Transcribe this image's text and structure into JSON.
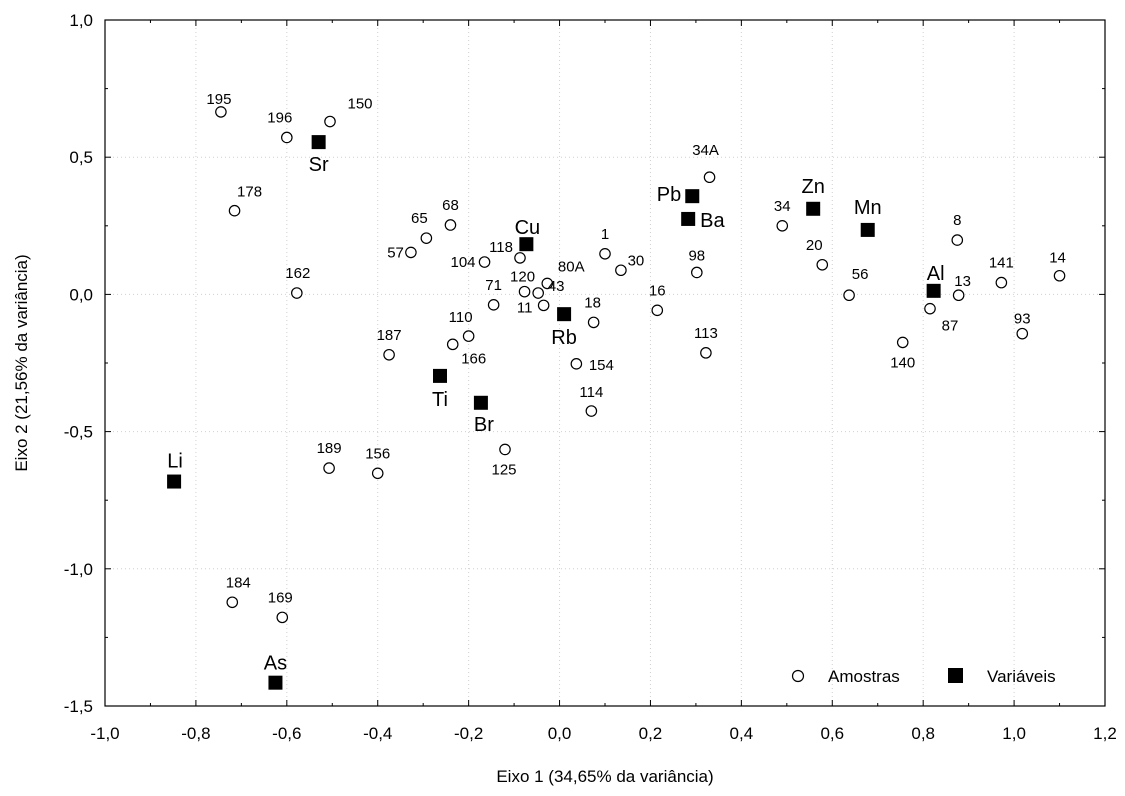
{
  "chart_data": {
    "type": "scatter",
    "xlabel": "Eixo 1 (34,65% da variância)",
    "ylabel": "Eixo 2 (21,56% da variância)",
    "xlim": [
      -1.0,
      1.2
    ],
    "ylim": [
      -1.5,
      1.0
    ],
    "xticks": [
      "-1,0",
      "-0,8",
      "-0,6",
      "-0,4",
      "-0,2",
      "0,0",
      "0,2",
      "0,4",
      "0,6",
      "0,8",
      "1,0",
      "1,2"
    ],
    "yticks": [
      "-1,5",
      "-1,0",
      "-0,5",
      "0,0",
      "0,5",
      "1,0"
    ],
    "grid": true,
    "legend_position": "bottom-right",
    "series": [
      {
        "name": "Amostras",
        "marker": "open-circle",
        "points": [
          {
            "label": "195",
            "x": -0.745,
            "y": 0.665
          },
          {
            "label": "150",
            "x": -0.505,
            "y": 0.63
          },
          {
            "label": "196",
            "x": -0.6,
            "y": 0.572
          },
          {
            "label": "178",
            "x": -0.715,
            "y": 0.305
          },
          {
            "label": "162",
            "x": -0.578,
            "y": 0.005
          },
          {
            "label": "65",
            "x": -0.293,
            "y": 0.205
          },
          {
            "label": "68",
            "x": -0.24,
            "y": 0.253
          },
          {
            "label": "57",
            "x": -0.327,
            "y": 0.153
          },
          {
            "label": "104",
            "x": -0.165,
            "y": 0.118
          },
          {
            "label": "118",
            "x": -0.087,
            "y": 0.133
          },
          {
            "label": "120",
            "x": -0.077,
            "y": 0.01
          },
          {
            "label": "80A",
            "x": -0.027,
            "y": 0.04
          },
          {
            "label": "43",
            "x": -0.047,
            "y": 0.005
          },
          {
            "label": "11",
            "x": -0.035,
            "y": -0.04
          },
          {
            "label": "71",
            "x": -0.145,
            "y": -0.038
          },
          {
            "label": "1",
            "x": 0.1,
            "y": 0.148
          },
          {
            "label": "30",
            "x": 0.135,
            "y": 0.088
          },
          {
            "label": "18",
            "x": 0.075,
            "y": -0.102
          },
          {
            "label": "16",
            "x": 0.215,
            "y": -0.058
          },
          {
            "label": "98",
            "x": 0.302,
            "y": 0.08
          },
          {
            "label": "34A",
            "x": 0.33,
            "y": 0.427
          },
          {
            "label": "34",
            "x": 0.49,
            "y": 0.25
          },
          {
            "label": "20",
            "x": 0.578,
            "y": 0.108
          },
          {
            "label": "56",
            "x": 0.637,
            "y": -0.003
          },
          {
            "label": "8",
            "x": 0.875,
            "y": 0.198
          },
          {
            "label": "13",
            "x": 0.878,
            "y": -0.003
          },
          {
            "label": "87",
            "x": 0.815,
            "y": -0.052
          },
          {
            "label": "141",
            "x": 0.972,
            "y": 0.043
          },
          {
            "label": "14",
            "x": 1.1,
            "y": 0.068
          },
          {
            "label": "93",
            "x": 1.018,
            "y": -0.143
          },
          {
            "label": "140",
            "x": 0.755,
            "y": -0.175
          },
          {
            "label": "113",
            "x": 0.322,
            "y": -0.213
          },
          {
            "label": "154",
            "x": 0.037,
            "y": -0.253
          },
          {
            "label": "114",
            "x": 0.07,
            "y": -0.425
          },
          {
            "label": "125",
            "x": -0.12,
            "y": -0.565
          },
          {
            "label": "110",
            "x": -0.2,
            "y": -0.152
          },
          {
            "label": "166",
            "x": -0.235,
            "y": -0.182
          },
          {
            "label": "187",
            "x": -0.375,
            "y": -0.22
          },
          {
            "label": "189",
            "x": -0.507,
            "y": -0.633
          },
          {
            "label": "156",
            "x": -0.4,
            "y": -0.652
          },
          {
            "label": "184",
            "x": -0.72,
            "y": -1.122
          },
          {
            "label": "169",
            "x": -0.61,
            "y": -1.177
          }
        ]
      },
      {
        "name": "Variáveis",
        "marker": "filled-square",
        "points": [
          {
            "label": "Sr",
            "x": -0.53,
            "y": 0.555
          },
          {
            "label": "Cu",
            "x": -0.073,
            "y": 0.183
          },
          {
            "label": "Pb",
            "x": 0.292,
            "y": 0.358
          },
          {
            "label": "Ba",
            "x": 0.283,
            "y": 0.275
          },
          {
            "label": "Zn",
            "x": 0.558,
            "y": 0.312
          },
          {
            "label": "Mn",
            "x": 0.678,
            "y": 0.235
          },
          {
            "label": "Al",
            "x": 0.823,
            "y": 0.013
          },
          {
            "label": "Rb",
            "x": 0.01,
            "y": -0.072
          },
          {
            "label": "Ti",
            "x": -0.263,
            "y": -0.297
          },
          {
            "label": "Br",
            "x": -0.173,
            "y": -0.395
          },
          {
            "label": "Li",
            "x": -0.848,
            "y": -0.682
          },
          {
            "label": "As",
            "x": -0.625,
            "y": -1.415
          }
        ]
      }
    ]
  }
}
